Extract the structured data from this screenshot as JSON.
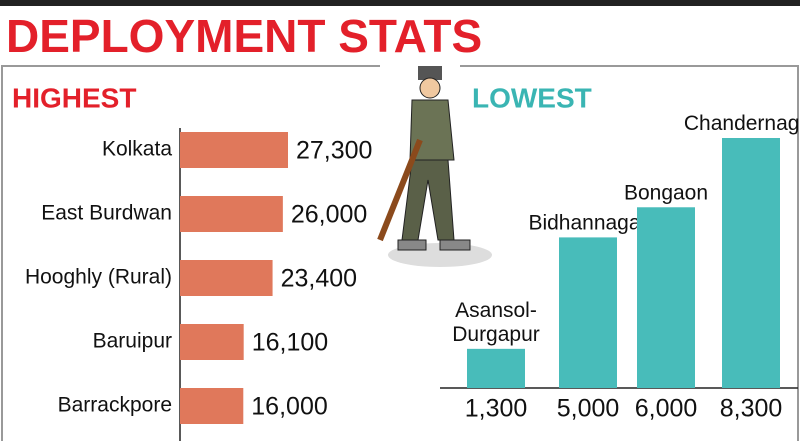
{
  "title": "DEPLOYMENT STATS",
  "chart_data": [
    {
      "type": "hbar",
      "title": "HIGHEST",
      "color": "#e0785b",
      "categories": [
        "Kolkata",
        "East Burdwan",
        "Hooghly (Rural)",
        "Baruipur",
        "Barrackpore"
      ],
      "values": [
        27300,
        26000,
        23400,
        16100,
        16000
      ],
      "value_labels": [
        "27,300",
        "26,000",
        "23,400",
        "16,100",
        "16,000"
      ]
    },
    {
      "type": "bar",
      "title": "LOWEST",
      "color": "#48bcba",
      "categories": [
        "Asansol-Durgapur",
        "Bidhannagar",
        "Bongaon",
        "Chandernagar"
      ],
      "values": [
        1300,
        5000,
        6000,
        8300
      ],
      "value_labels": [
        "1,300",
        "5,000",
        "6,000",
        "8,300"
      ]
    }
  ]
}
